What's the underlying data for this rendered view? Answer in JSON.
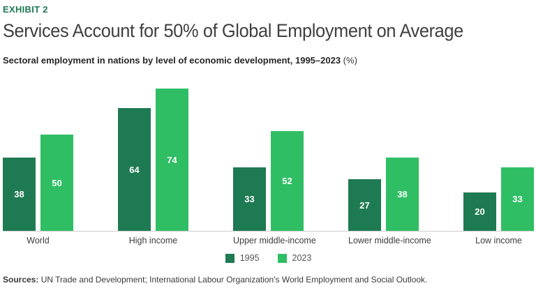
{
  "exhibit_label": "EXHIBIT 2",
  "title": "Services Account for 50% of Global Employment on Average",
  "subtitle": "Sectoral employment in nations by level of economic development, 1995–2023",
  "subtitle_unit": " (%)",
  "chart_data": {
    "type": "bar",
    "categories": [
      "World",
      "High income",
      "Upper middle-income",
      "Lower middle-income",
      "Low income"
    ],
    "series": [
      {
        "name": "1995",
        "color": "#1e7a52",
        "values": [
          38,
          64,
          33,
          27,
          20
        ]
      },
      {
        "name": "2023",
        "color": "#2fbe64",
        "values": [
          50,
          74,
          52,
          38,
          33
        ]
      }
    ],
    "ylim": [
      0,
      80
    ],
    "grid": false,
    "value_labels": true,
    "legend_position": "bottom",
    "axis_line_color": "#cccccc"
  },
  "sources": {
    "label": "Sources:",
    "text": " UN Trade and Development; International Labour Organization's World Employment and Social Outlook."
  },
  "colors": {
    "accent_green": "#1e7a52",
    "light_green": "#2fbe64",
    "title_text": "#3f3f3f"
  }
}
